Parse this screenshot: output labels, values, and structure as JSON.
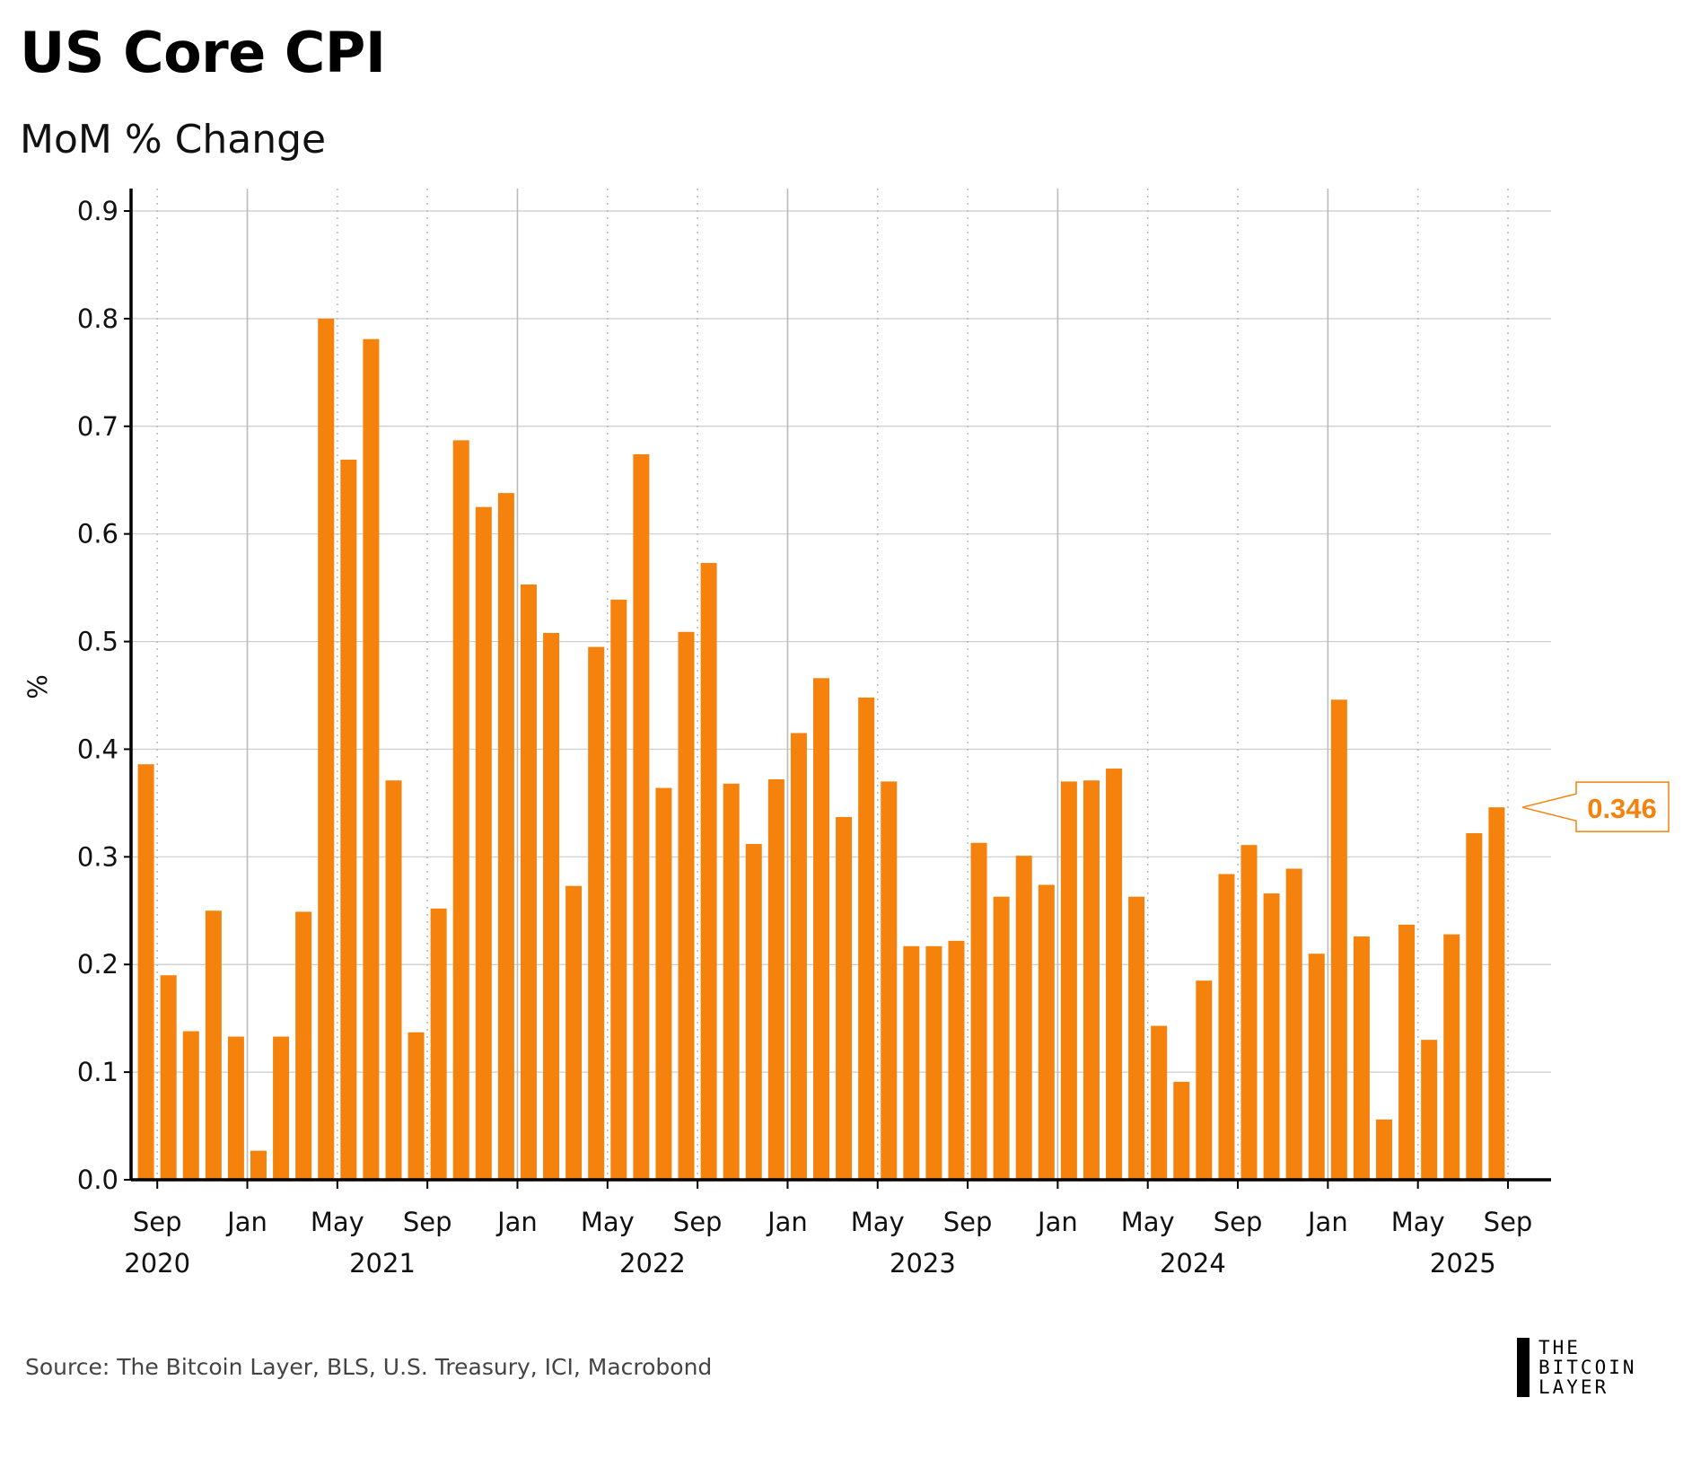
{
  "title": "US Core CPI",
  "subtitle": "MoM % Change",
  "source": "Source: The Bitcoin Layer, BLS, U.S. Treasury, ICI, Macrobond",
  "logo": {
    "line1": "THE",
    "line2": "BITCOIN",
    "line3": "LAYER"
  },
  "colors": {
    "bar": "#F5820D",
    "axis": "#000000",
    "grid": "#CCCCCC"
  },
  "chart_data": {
    "type": "bar",
    "title": "US Core CPI",
    "subtitle": "MoM % Change",
    "ylabel": "%",
    "xlabel": "",
    "ylim": [
      0,
      0.9
    ],
    "yticks": [
      "0.0",
      "0.1",
      "0.2",
      "0.3",
      "0.4",
      "0.5",
      "0.6",
      "0.7",
      "0.8",
      "0.9"
    ],
    "start_month": "2020-08",
    "xtick_labels": [
      "Sep",
      "Jan",
      "May",
      "Sep",
      "Jan",
      "May",
      "Sep",
      "Jan",
      "May",
      "Sep",
      "Jan",
      "May",
      "Sep",
      "Jan",
      "May",
      "Sep"
    ],
    "year_labels": [
      "2020",
      "2021",
      "2022",
      "2023",
      "2024",
      "2025"
    ],
    "values": [
      0.386,
      0.19,
      0.138,
      0.25,
      0.133,
      0.027,
      0.133,
      0.249,
      0.8,
      0.669,
      0.781,
      0.371,
      0.137,
      0.252,
      0.687,
      0.625,
      0.638,
      0.553,
      0.508,
      0.273,
      0.495,
      0.539,
      0.674,
      0.364,
      0.509,
      0.573,
      0.368,
      0.312,
      0.372,
      0.415,
      0.466,
      0.337,
      0.448,
      0.37,
      0.217,
      0.217,
      0.222,
      0.313,
      0.263,
      0.301,
      0.274,
      0.37,
      0.371,
      0.382,
      0.263,
      0.143,
      0.091,
      0.185,
      0.284,
      0.311,
      0.266,
      0.289,
      0.21,
      0.446,
      0.226,
      0.056,
      0.237,
      0.13,
      0.228,
      0.322,
      0.346
    ],
    "last_value_label": "0.346",
    "grid": true
  }
}
